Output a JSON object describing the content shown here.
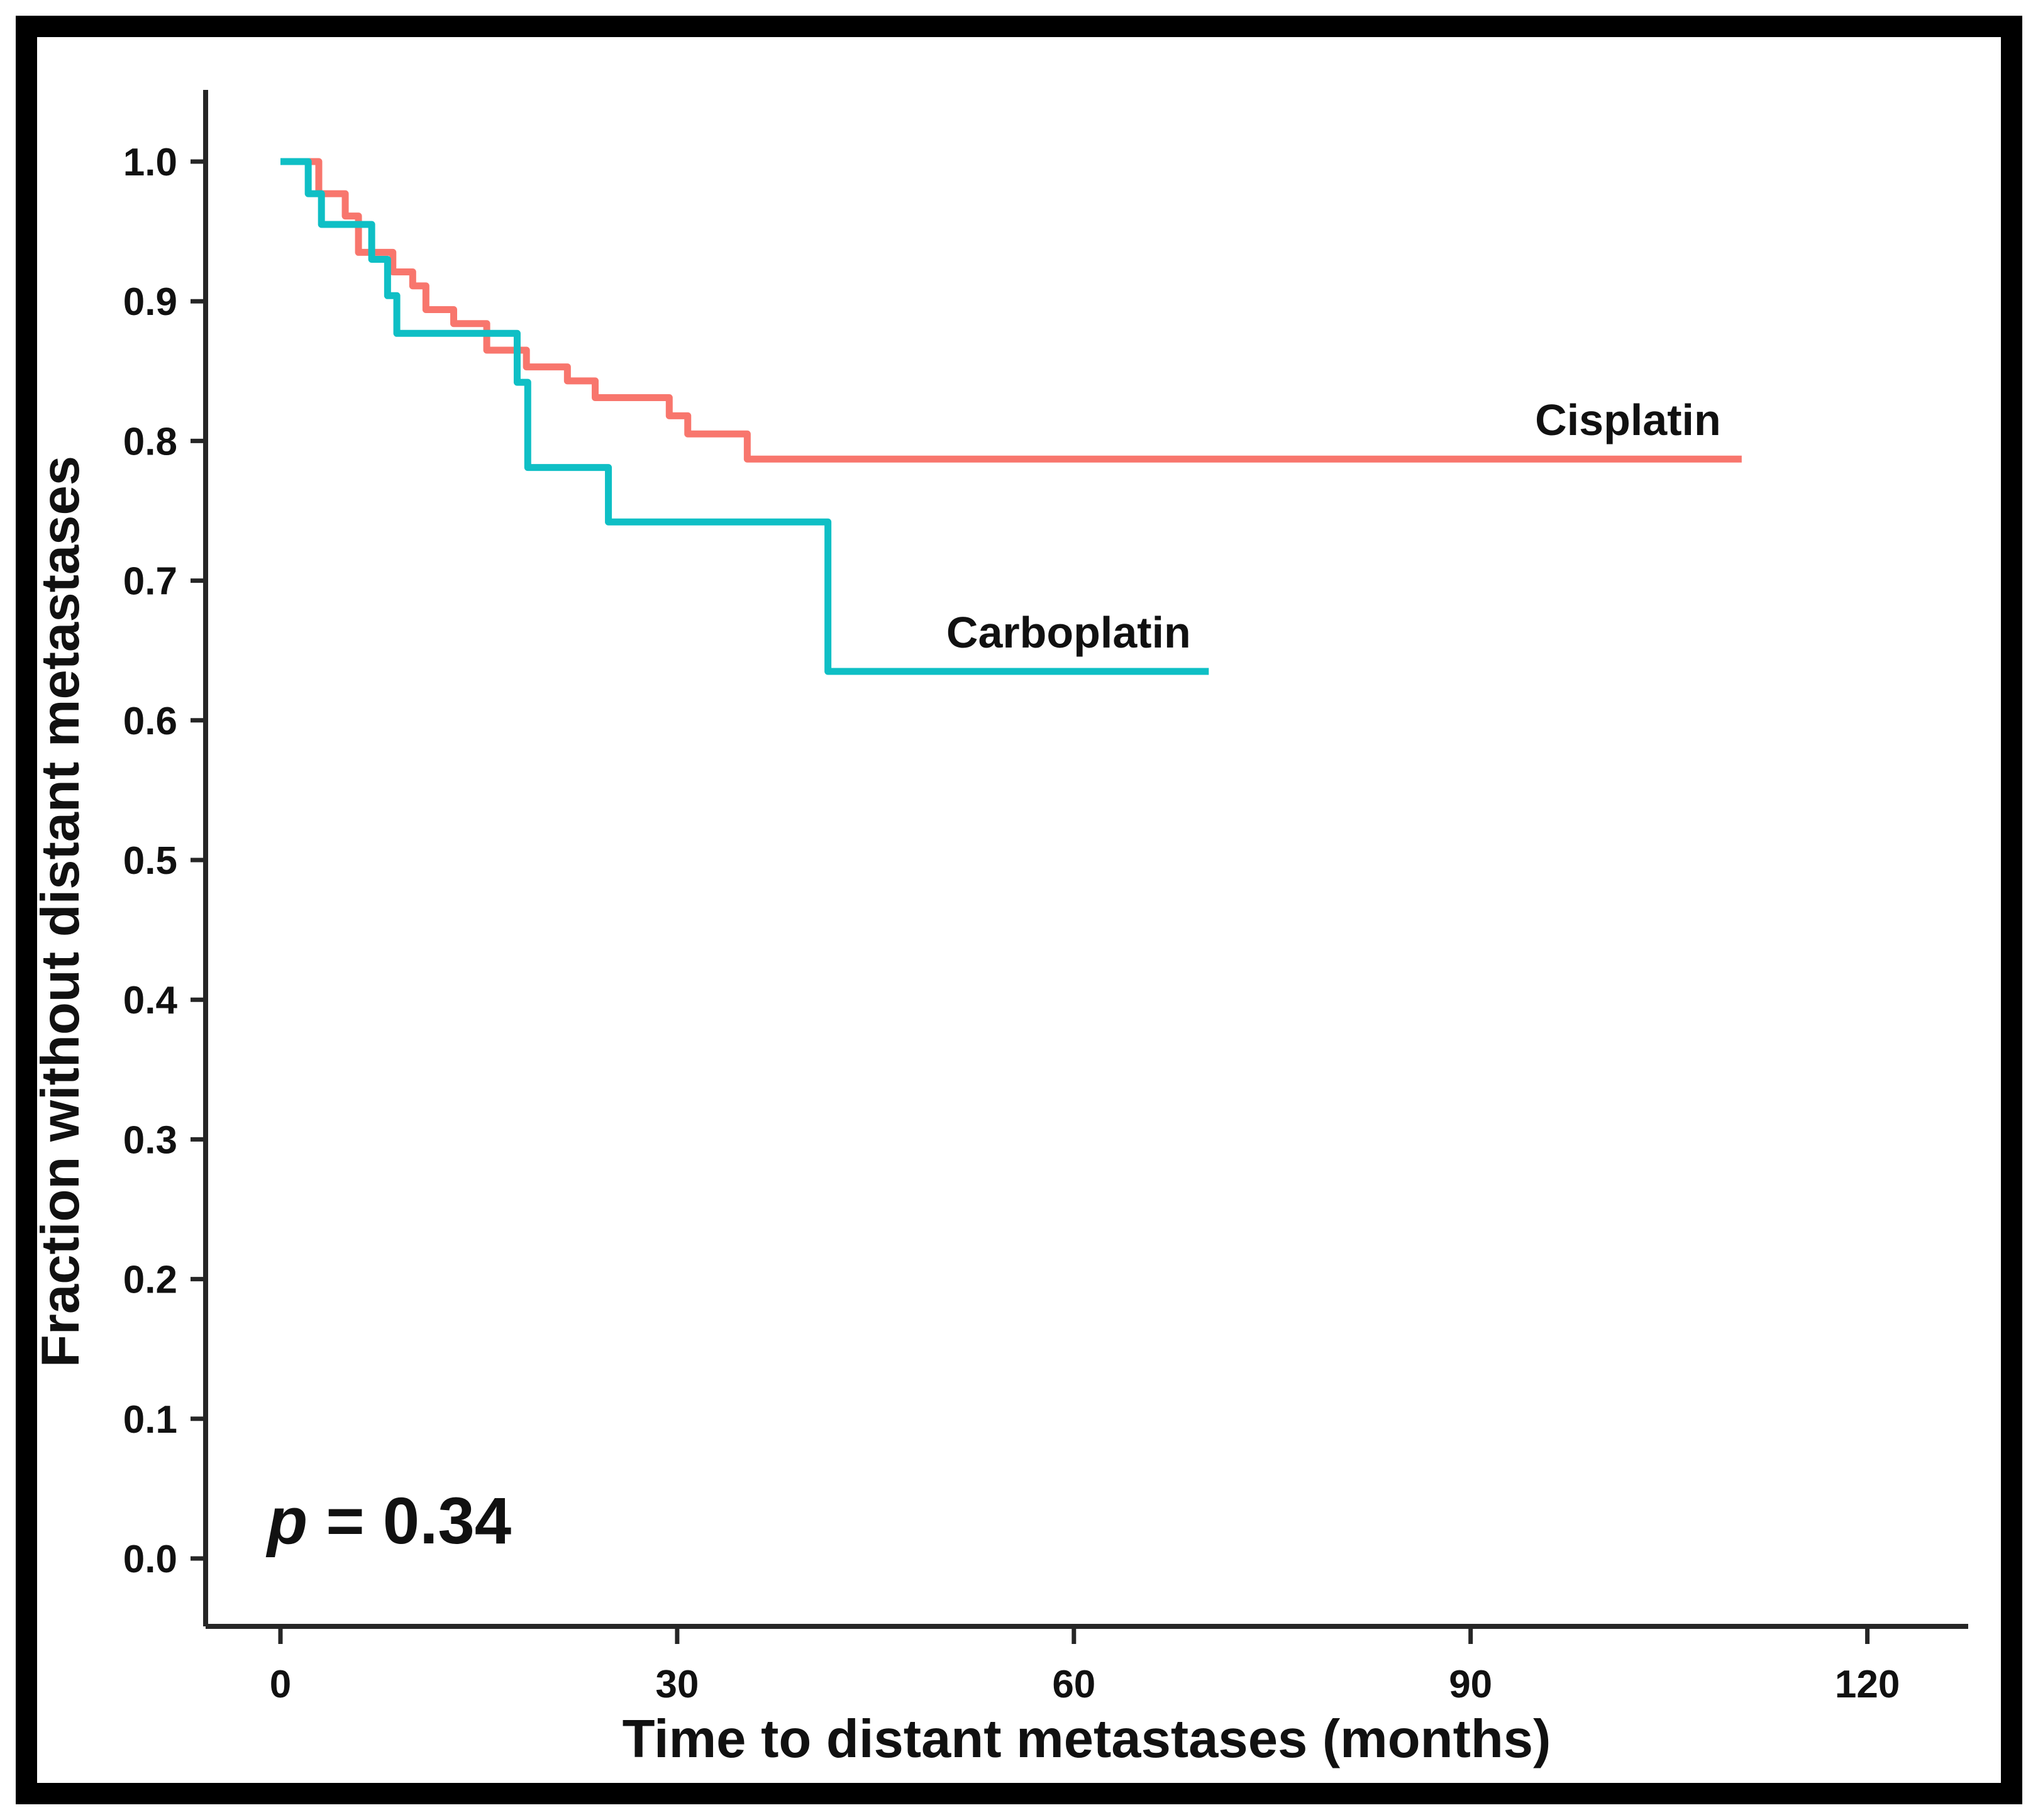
{
  "figure": {
    "p_label": {
      "symbol": "p",
      "rest": " = 0.34"
    }
  },
  "chart_data": {
    "type": "line",
    "subtype": "kaplan-meier-step",
    "title": "",
    "xlabel": "Time to distant metastases (months)",
    "ylabel": "Fraction without distant metastases",
    "xlim": [
      0,
      127
    ],
    "ylim": [
      0.0,
      1.05
    ],
    "x_ticks": [
      0,
      30,
      60,
      90,
      120
    ],
    "y_tick_labels": [
      "0.0",
      "0.1",
      "0.2",
      "0.3",
      "0.4",
      "0.5",
      "0.6",
      "0.7",
      "0.8",
      "0.9",
      "1.0"
    ],
    "grid": false,
    "legend_position": "inline-labels",
    "annotations": [
      {
        "text": "p = 0.34",
        "x_month": -0.9,
        "fraction": 0.011
      }
    ],
    "series": [
      {
        "name": "Cisplatin",
        "color": "#F8766D",
        "label_x_month": 101.9,
        "label_fraction": 0.815,
        "points": [
          [
            0,
            1.0
          ],
          [
            2.9,
            0.977
          ],
          [
            4.9,
            0.961
          ],
          [
            5.9,
            0.935
          ],
          [
            8.5,
            0.921
          ],
          [
            10.0,
            0.911
          ],
          [
            11.0,
            0.894
          ],
          [
            13.1,
            0.884
          ],
          [
            15.6,
            0.865
          ],
          [
            18.6,
            0.853
          ],
          [
            21.7,
            0.843
          ],
          [
            23.8,
            0.831
          ],
          [
            29.4,
            0.818
          ],
          [
            30.8,
            0.805
          ],
          [
            35.3,
            0.787
          ],
          [
            110.5,
            0.787
          ]
        ]
      },
      {
        "name": "Carboplatin",
        "color": "#0FBFC5",
        "label_x_month": 59.6,
        "label_fraction": 0.663,
        "points": [
          [
            0,
            1.0
          ],
          [
            2.1,
            0.977
          ],
          [
            3.1,
            0.955
          ],
          [
            6.9,
            0.93
          ],
          [
            8.1,
            0.904
          ],
          [
            8.8,
            0.877
          ],
          [
            17.9,
            0.842
          ],
          [
            18.7,
            0.781
          ],
          [
            24.8,
            0.742
          ],
          [
            41.4,
            0.635
          ],
          [
            70.2,
            0.635
          ]
        ]
      }
    ]
  }
}
